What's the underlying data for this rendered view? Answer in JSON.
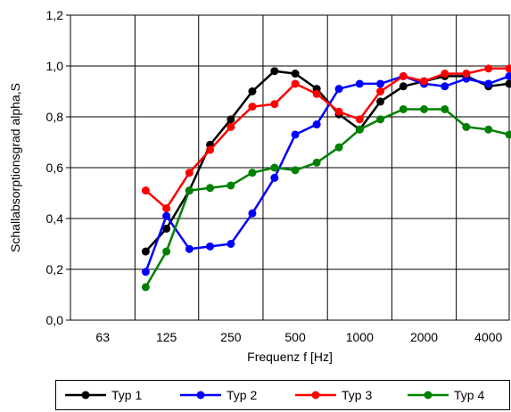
{
  "chart_data": {
    "type": "line",
    "title": "",
    "xlabel": "Frequenz f [Hz]",
    "ylabel": "Schallabsorptionsgrad alpha,S",
    "x_scale": "log",
    "xlim": [
      44.5,
      5000
    ],
    "ylim": [
      0,
      1.2
    ],
    "x_ticks": [
      63,
      125,
      250,
      500,
      1000,
      2000,
      4000
    ],
    "x_tick_labels": [
      "63",
      "125",
      "250",
      "500",
      "1000",
      "2000",
      "4000"
    ],
    "y_ticks": [
      0,
      0.2,
      0.4,
      0.6,
      0.8,
      1.0,
      1.2
    ],
    "y_tick_labels": [
      "0,0",
      "0,2",
      "0,4",
      "0,6",
      "0,8",
      "1,0",
      "1,2"
    ],
    "grid": true,
    "legend_position": "bottom",
    "x": [
      100,
      125,
      160,
      200,
      250,
      315,
      400,
      500,
      630,
      800,
      1000,
      1250,
      1600,
      2000,
      2500,
      3150,
      4000,
      5000
    ],
    "series": [
      {
        "name": "Typ 1",
        "color": "#000000",
        "values": [
          0.27,
          0.36,
          0.51,
          0.69,
          0.79,
          0.9,
          0.98,
          0.97,
          0.91,
          0.81,
          0.75,
          0.86,
          0.92,
          0.94,
          0.96,
          0.96,
          0.92,
          0.93
        ]
      },
      {
        "name": "Typ 2",
        "color": "#0000ff",
        "values": [
          0.19,
          0.41,
          0.28,
          0.29,
          0.3,
          0.42,
          0.56,
          0.73,
          0.77,
          0.91,
          0.93,
          0.93,
          0.96,
          0.93,
          0.92,
          0.95,
          0.93,
          0.96
        ]
      },
      {
        "name": "Typ 3",
        "color": "#ff0000",
        "values": [
          0.51,
          0.44,
          0.58,
          0.67,
          0.76,
          0.84,
          0.85,
          0.93,
          0.89,
          0.82,
          0.79,
          0.9,
          0.96,
          0.94,
          0.97,
          0.97,
          0.99,
          0.99
        ]
      },
      {
        "name": "Typ 4",
        "color": "#008000",
        "values": [
          0.13,
          0.27,
          0.51,
          0.52,
          0.53,
          0.58,
          0.6,
          0.59,
          0.62,
          0.68,
          0.75,
          0.79,
          0.83,
          0.83,
          0.83,
          0.76,
          0.75,
          0.73
        ]
      }
    ]
  }
}
